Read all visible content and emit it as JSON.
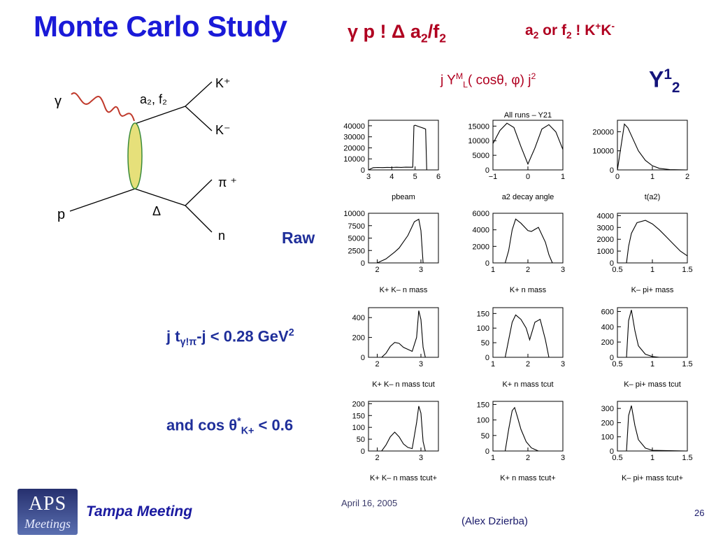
{
  "slide": {
    "title": "Monte Carlo Study",
    "reaction": {
      "pre": "γ p ! Δ a",
      "sub": "2",
      "post": "/f",
      "sub2": "2"
    },
    "decay": {
      "a": "a",
      "a_sub": "2",
      "mid": " or f",
      "f_sub": "2",
      "post": " ! K",
      "kplus": "+",
      "k": "K",
      "kminus": "-"
    },
    "moments": {
      "pre": "j Y",
      "sup": "M",
      "sub": "L",
      "post": "( cosθ, φ) j",
      "sup2": "2"
    },
    "ylm": {
      "base": "Y",
      "sup": "1",
      "sub": "2"
    },
    "raw_label": "Raw",
    "cut1": {
      "pre": "j t",
      "sub": "γ!π",
      "post": "-j < 0.28 GeV",
      "sup": "2"
    },
    "cut2": {
      "pre": "and cos θ",
      "sup": "*",
      "sub": "K+",
      "post": " < 0.6"
    }
  },
  "feynman": {
    "gamma": "γ",
    "p": "p",
    "exchange": "a₂, f₂",
    "kplus": "K⁺",
    "kminus": "K⁻",
    "delta": "Δ",
    "piplus": "π ⁺",
    "n": "n",
    "colors": {
      "wave": "#c0392b",
      "blob_fill": "#e6e07a",
      "blob_stroke": "#3a8a3a"
    }
  },
  "footer": {
    "date": "April 16, 2005",
    "author": "(Alex Dzierba)",
    "page": "26",
    "meeting": "Tampa Meeting",
    "logo_top": "APS",
    "logo_bottom": "Meetings"
  },
  "chart_data": [
    {
      "type": "line",
      "title": "",
      "xlabel": "pbeam",
      "xlim": [
        3,
        6
      ],
      "ylim": [
        0,
        45000
      ],
      "xticks": [
        3,
        4,
        5,
        6
      ],
      "yticks": [
        0,
        10000,
        20000,
        30000,
        40000
      ],
      "x": [
        3.0,
        3.2,
        3.4,
        3.6,
        3.8,
        4.0,
        4.2,
        4.4,
        4.6,
        4.9,
        4.95,
        5.0,
        5.2,
        5.4,
        5.45,
        5.5,
        6.0
      ],
      "y": [
        0,
        2000,
        2200,
        2100,
        2300,
        2200,
        2400,
        2300,
        2500,
        2400,
        40000,
        40500,
        39000,
        37500,
        37000,
        0,
        0
      ]
    },
    {
      "type": "line",
      "title": "All runs – Y21",
      "xlabel": "a2 decay angle",
      "xlim": [
        -1,
        1
      ],
      "ylim": [
        0,
        17000
      ],
      "xticks": [
        -1,
        0,
        1
      ],
      "yticks": [
        0,
        5000,
        10000,
        15000
      ],
      "x": [
        -1.0,
        -0.8,
        -0.6,
        -0.4,
        -0.2,
        0.0,
        0.2,
        0.4,
        0.6,
        0.8,
        1.0
      ],
      "y": [
        9000,
        13500,
        16000,
        14500,
        8000,
        2000,
        7500,
        14000,
        15500,
        13000,
        7000
      ]
    },
    {
      "type": "line",
      "title": "",
      "xlabel": "t(a2)",
      "xlim": [
        0,
        2
      ],
      "ylim": [
        0,
        26000
      ],
      "xticks": [
        0,
        1,
        2
      ],
      "yticks": [
        0,
        10000,
        20000
      ],
      "x": [
        0.0,
        0.1,
        0.2,
        0.3,
        0.45,
        0.6,
        0.8,
        1.0,
        1.2,
        1.5,
        2.0
      ],
      "y": [
        0,
        12000,
        24000,
        22000,
        16000,
        10000,
        5000,
        2200,
        800,
        200,
        0
      ]
    },
    {
      "type": "line",
      "title": "",
      "xlabel": "K+ K– n mass",
      "xlim": [
        1.8,
        3.4
      ],
      "ylim": [
        0,
        10000
      ],
      "xticks": [
        2,
        3
      ],
      "yticks": [
        0,
        2500,
        5000,
        7500,
        10000
      ],
      "x": [
        2.0,
        2.2,
        2.4,
        2.5,
        2.7,
        2.85,
        2.95,
        3.0,
        3.05,
        3.3
      ],
      "y": [
        0,
        800,
        2200,
        3000,
        5500,
        8300,
        8800,
        6500,
        0,
        0
      ]
    },
    {
      "type": "line",
      "title": "",
      "xlabel": "K+ n mass",
      "xlim": [
        1,
        3
      ],
      "ylim": [
        0,
        6000
      ],
      "xticks": [
        1,
        2,
        3
      ],
      "yticks": [
        0,
        2000,
        4000,
        6000
      ],
      "x": [
        1.35,
        1.45,
        1.55,
        1.65,
        1.8,
        2.0,
        2.1,
        2.3,
        2.5,
        2.6,
        2.7
      ],
      "y": [
        0,
        1500,
        4000,
        5300,
        4800,
        3900,
        3800,
        4300,
        2500,
        1000,
        0
      ]
    },
    {
      "type": "line",
      "title": "",
      "xlabel": "K– pi+ mass",
      "xlim": [
        0.5,
        1.5
      ],
      "ylim": [
        0,
        4200
      ],
      "xticks": [
        0.5,
        1,
        1.5
      ],
      "yticks": [
        0,
        1000,
        2000,
        3000,
        4000
      ],
      "x": [
        0.63,
        0.66,
        0.7,
        0.78,
        0.9,
        1.0,
        1.1,
        1.2,
        1.3,
        1.4,
        1.5
      ],
      "y": [
        0,
        1400,
        2500,
        3400,
        3600,
        3300,
        2800,
        2200,
        1600,
        1000,
        600
      ]
    },
    {
      "type": "line",
      "title": "",
      "xlabel": "K+ K– n mass tcut",
      "xlim": [
        1.8,
        3.4
      ],
      "ylim": [
        0,
        500
      ],
      "xticks": [
        2,
        3
      ],
      "yticks": [
        0,
        200,
        400
      ],
      "x": [
        2.1,
        2.2,
        2.3,
        2.4,
        2.5,
        2.6,
        2.7,
        2.8,
        2.9,
        2.95,
        3.0,
        3.05,
        3.1
      ],
      "y": [
        0,
        40,
        110,
        150,
        140,
        100,
        80,
        60,
        200,
        470,
        380,
        100,
        0
      ]
    },
    {
      "type": "line",
      "title": "",
      "xlabel": "K+ n mass tcut",
      "xlim": [
        1,
        3
      ],
      "ylim": [
        0,
        170
      ],
      "xticks": [
        1,
        2,
        3
      ],
      "yticks": [
        0,
        50,
        100,
        150
      ],
      "x": [
        1.35,
        1.45,
        1.55,
        1.65,
        1.8,
        1.95,
        2.05,
        2.2,
        2.35,
        2.5,
        2.6
      ],
      "y": [
        0,
        60,
        120,
        145,
        130,
        100,
        60,
        120,
        130,
        60,
        0
      ]
    },
    {
      "type": "line",
      "title": "",
      "xlabel": "K– pi+ mass tcut",
      "xlim": [
        0.5,
        1.5
      ],
      "ylim": [
        0,
        650
      ],
      "xticks": [
        0.5,
        1,
        1.5
      ],
      "yticks": [
        0,
        200,
        400,
        600
      ],
      "x": [
        0.63,
        0.66,
        0.7,
        0.75,
        0.8,
        0.9,
        1.0,
        1.1,
        1.5
      ],
      "y": [
        0,
        480,
        620,
        350,
        150,
        40,
        10,
        0,
        0
      ]
    },
    {
      "type": "line",
      "title": "",
      "xlabel": "K+ K– n mass tcut+",
      "xlim": [
        1.8,
        3.4
      ],
      "ylim": [
        0,
        210
      ],
      "xticks": [
        2,
        3
      ],
      "yticks": [
        0,
        50,
        100,
        150,
        200
      ],
      "x": [
        2.1,
        2.2,
        2.3,
        2.4,
        2.5,
        2.6,
        2.7,
        2.8,
        2.9,
        2.95,
        3.0,
        3.05,
        3.1
      ],
      "y": [
        0,
        25,
        60,
        80,
        60,
        30,
        15,
        10,
        120,
        190,
        160,
        40,
        0
      ]
    },
    {
      "type": "line",
      "title": "",
      "xlabel": "K+ n mass tcut+",
      "xlim": [
        1,
        3
      ],
      "ylim": [
        0,
        160
      ],
      "xticks": [
        1,
        2,
        3
      ],
      "yticks": [
        0,
        50,
        100,
        150
      ],
      "x": [
        1.35,
        1.45,
        1.55,
        1.62,
        1.7,
        1.8,
        1.95,
        2.1,
        2.3
      ],
      "y": [
        0,
        70,
        130,
        140,
        110,
        70,
        30,
        10,
        0
      ]
    },
    {
      "type": "line",
      "title": "",
      "xlabel": "K– pi+ mass tcut+",
      "xlim": [
        0.5,
        1.5
      ],
      "ylim": [
        0,
        350
      ],
      "xticks": [
        0.5,
        1,
        1.5
      ],
      "yticks": [
        0,
        100,
        200,
        300
      ],
      "x": [
        0.63,
        0.66,
        0.7,
        0.75,
        0.8,
        0.9,
        1.0,
        1.5
      ],
      "y": [
        0,
        250,
        320,
        180,
        80,
        20,
        5,
        0
      ]
    }
  ]
}
